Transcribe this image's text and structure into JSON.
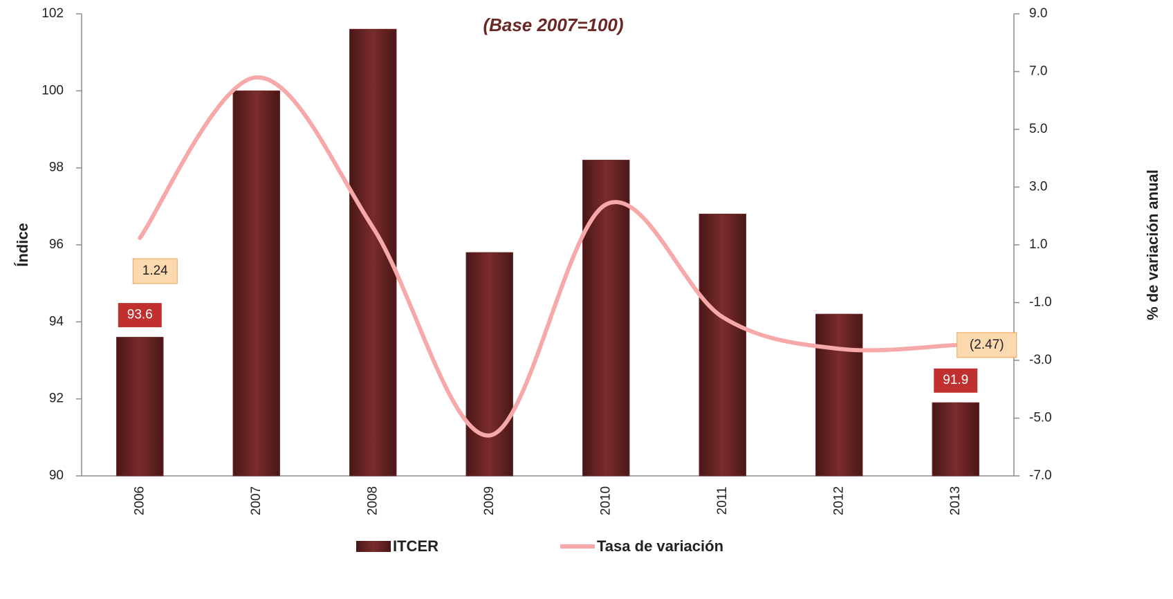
{
  "chart_data": {
    "type": "bar_line",
    "subtitle": "(Base 2007=100)",
    "y_label": "Índice",
    "y2_label": "% de variación anual",
    "categories": [
      "2006",
      "2007",
      "2008",
      "2009",
      "2010",
      "2011",
      "2012",
      "2013"
    ],
    "series": [
      {
        "name": "ITCER",
        "type": "bar",
        "color": "#6b2626",
        "values": [
          93.6,
          100,
          101.6,
          95.8,
          98.2,
          96.8,
          94.2,
          91.9
        ],
        "value_labels": [
          "93.6",
          null,
          null,
          null,
          null,
          null,
          null,
          "91.9"
        ]
      },
      {
        "name": "Tasa de variación",
        "type": "line",
        "axis": "y2",
        "color": "#f7a8a8",
        "values": [
          1.24,
          6.8,
          1.6,
          -5.6,
          2.4,
          -1.5,
          -2.6,
          -2.47
        ],
        "value_labels": [
          "1.24",
          null,
          null,
          null,
          null,
          null,
          null,
          "(2.47)"
        ]
      }
    ],
    "ylim": [
      90,
      102
    ],
    "yticks": [
      90,
      92,
      94,
      96,
      98,
      100,
      102
    ],
    "y2lim": [
      -7,
      9
    ],
    "y2ticks": [
      {
        "value": -7,
        "label": "-7.0"
      },
      {
        "value": -5,
        "label": "-5.0"
      },
      {
        "value": -3,
        "label": "-3.0"
      },
      {
        "value": -1,
        "label": "-1.0"
      },
      {
        "value": 1,
        "label": "1.0"
      },
      {
        "value": 3,
        "label": "3.0"
      },
      {
        "value": 5,
        "label": "5.0"
      },
      {
        "value": 7,
        "label": "7.0"
      },
      {
        "value": 9,
        "label": "9.0"
      }
    ],
    "grid": false,
    "legend": "bottom"
  }
}
